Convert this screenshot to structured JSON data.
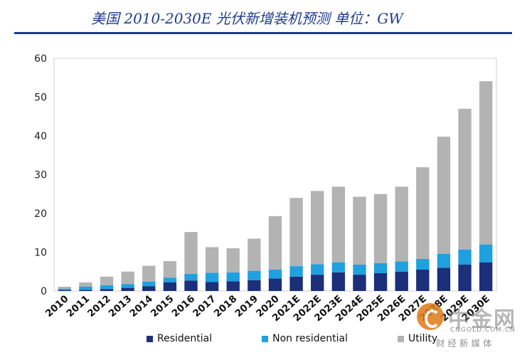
{
  "chart_data": {
    "type": "bar",
    "stacked": true,
    "title": "美国 2010-2030E 光伏新增装机预测 单位：GW",
    "categories": [
      "2010",
      "2011",
      "2012",
      "2013",
      "2014",
      "2015",
      "2016",
      "2017",
      "2018",
      "2019",
      "2020",
      "2021E",
      "2022E",
      "2023E",
      "2024E",
      "2025E",
      "2026E",
      "2027E",
      "2028E",
      "2029E",
      "2030E"
    ],
    "series": [
      {
        "name": "Residential",
        "color": "#1b2f7a",
        "values": [
          0.25,
          0.3,
          0.5,
          0.8,
          1.2,
          2.2,
          2.7,
          2.3,
          2.5,
          2.8,
          3.2,
          3.7,
          4.2,
          4.8,
          4.2,
          4.6,
          5.0,
          5.5,
          6.0,
          6.8,
          7.4
        ]
      },
      {
        "name": "Non residential",
        "color": "#1fa0e0",
        "values": [
          0.35,
          0.8,
          1.0,
          1.0,
          1.2,
          1.2,
          1.7,
          2.4,
          2.3,
          2.4,
          2.3,
          2.7,
          2.7,
          2.6,
          2.6,
          2.6,
          2.6,
          2.8,
          3.6,
          3.9,
          4.6
        ]
      },
      {
        "name": "Utility",
        "color": "#b3b3b3",
        "values": [
          0.5,
          1.1,
          2.2,
          3.2,
          4.1,
          4.3,
          10.8,
          6.6,
          6.2,
          8.3,
          13.8,
          17.6,
          18.9,
          19.5,
          17.5,
          17.8,
          19.3,
          23.6,
          30.2,
          36.3,
          42.1
        ]
      }
    ],
    "ylim": [
      0,
      60
    ],
    "yticks": [
      0,
      10,
      20,
      30,
      40,
      50,
      60
    ],
    "xlabel": "",
    "ylabel": "",
    "grid": false,
    "legend_position": "bottom"
  },
  "legend": {
    "residential": "Residential",
    "non_residential": "Non residential",
    "utility": "Utility"
  },
  "watermark": {
    "brand": "中金网",
    "url": "CNGOLD.COM.CN",
    "tagline": "财经新媒体",
    "color": "#e07a17"
  }
}
